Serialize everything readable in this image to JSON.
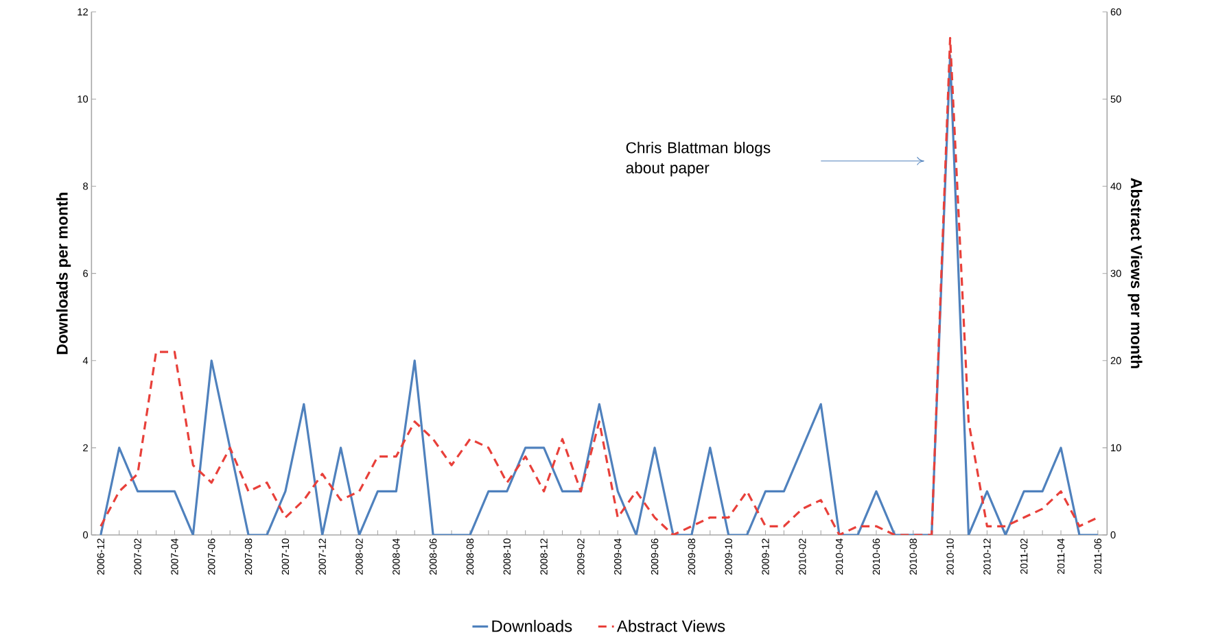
{
  "chart_data": {
    "type": "line",
    "ylabel": "Downloads per month",
    "y2label": "Abstract Views per month",
    "categories": [
      "2006-12",
      null,
      "2007-02",
      null,
      "2007-04",
      null,
      "2007-06",
      null,
      "2007-08",
      null,
      "2007-10",
      null,
      "2007-12",
      null,
      "2008-02",
      null,
      "2008-04",
      null,
      "2008-06",
      null,
      "2008-08",
      null,
      "2008-10",
      null,
      "2008-12",
      null,
      "2009-02",
      null,
      "2009-04",
      null,
      "2009-06",
      null,
      "2009-08",
      null,
      "2009-10",
      null,
      "2009-12",
      null,
      "2010-02",
      null,
      "2010-04",
      null,
      "2010-06",
      null,
      "2010-08",
      null,
      "2010-10",
      null,
      "2010-12",
      null,
      "2011-02",
      null,
      "2011-04",
      null,
      "2011-06"
    ],
    "series": [
      {
        "name": "Downloads",
        "color": "#4f81bd",
        "line_style": "solid",
        "values": [
          0,
          2,
          1,
          1,
          1,
          0,
          4,
          2,
          0,
          0,
          1,
          3,
          0,
          2,
          0,
          1,
          1,
          4,
          0,
          0,
          0,
          1,
          1,
          2,
          2,
          1,
          1,
          3,
          1,
          0,
          2,
          0,
          0,
          2,
          0,
          0,
          1,
          1,
          2,
          3,
          0,
          0,
          1,
          0,
          0,
          0,
          11,
          0,
          1,
          0,
          1,
          1,
          2,
          0,
          0
        ]
      },
      {
        "name": "Abstract Views",
        "color": "#e8403a",
        "line_style": "dashed",
        "axis": "y2",
        "values": [
          1,
          5,
          7,
          21,
          21,
          8,
          6,
          10,
          5,
          6,
          2,
          4,
          7,
          4,
          5,
          9,
          9,
          13,
          11,
          8,
          11,
          10,
          6,
          9,
          5,
          11,
          5,
          13,
          2,
          5,
          2,
          0,
          1,
          2,
          2,
          5,
          1,
          1,
          3,
          4,
          0,
          1,
          1,
          0,
          0,
          0,
          57,
          13,
          1,
          1,
          2,
          3,
          5,
          1,
          2
        ]
      }
    ],
    "ylim": [
      0,
      12
    ],
    "yticks": [
      0,
      2,
      4,
      6,
      8,
      10,
      12
    ],
    "y2lim": [
      0,
      60
    ],
    "y2ticks": [
      0,
      10,
      20,
      30,
      40,
      50,
      60
    ],
    "grid": false,
    "legend": "bottom",
    "marker": "none",
    "annotations": [
      "Chris Blattman blogs about paper"
    ]
  }
}
